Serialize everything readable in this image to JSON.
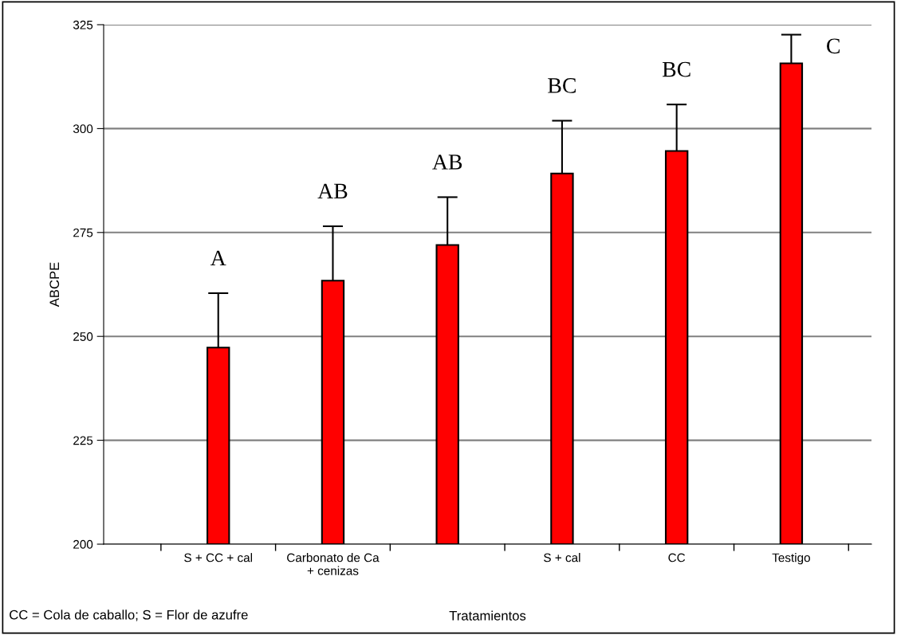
{
  "chart_data": {
    "type": "bar",
    "xlabel": "Tratamientos",
    "ylabel": "ABCPE",
    "categories": [
      "S + CC + cal",
      "Carbonato de Ca\n+ cenizas",
      null,
      "S + cal",
      "CC",
      "Testigo"
    ],
    "values": [
      247.3,
      263.4,
      272,
      289.2,
      294.6,
      315.7
    ],
    "errors": [
      13.1,
      13.1,
      11.5,
      12.7,
      11.2,
      6.9
    ],
    "color": "#ff0000",
    "ylim": [
      200,
      325
    ],
    "yticks": [
      200,
      225,
      250,
      275,
      300,
      325
    ],
    "grid": "y",
    "annotations": [
      {
        "text": "A",
        "x": "S + CC + cal",
        "y": 260.4
      },
      {
        "text": "AB",
        "x": "Carbonato de Ca\n+ cenizas",
        "y": 276.5
      },
      {
        "text": "AB",
        "y": 283.5
      },
      {
        "text": "BC",
        "x": "S + cal",
        "y": 301.9
      },
      {
        "text": "BC",
        "x": "CC",
        "y": 305.8
      },
      {
        "text": "C",
        "x": "Testigo",
        "y": 322.6
      },
      "CC = Cola de caballo; S = Flor de azufre"
    ]
  }
}
